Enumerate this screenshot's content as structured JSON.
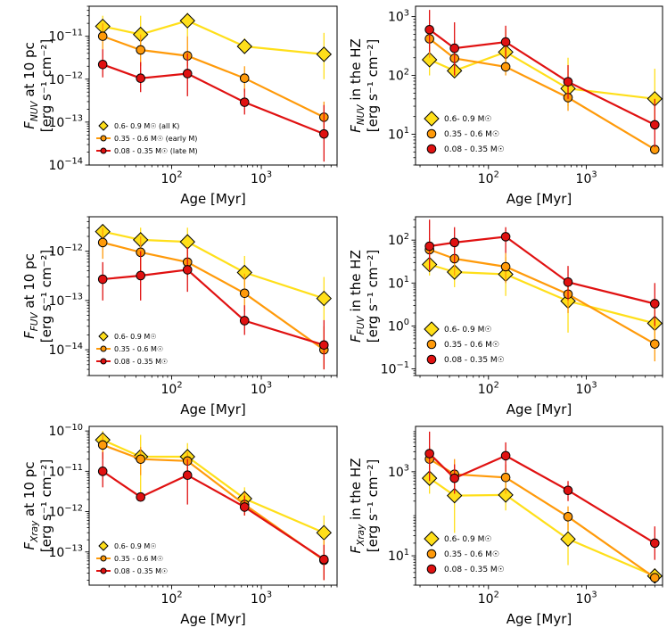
{
  "chart_data": [
    {
      "type": "line",
      "id": "nuv-10pc",
      "xlabel": "Age [Myr]",
      "ylabel_line1": "F_NUV at 10 pc",
      "ylabel_line2": "[erg s⁻¹ cm⁻²]",
      "xscale": "log",
      "yscale": "log",
      "xlim": [
        12,
        7000
      ],
      "ylim": [
        1e-14,
        5e-11
      ],
      "yticks": [
        {
          "v": 1e-14,
          "mant": "10",
          "exp": "−14"
        },
        {
          "v": 1e-13,
          "mant": "10",
          "exp": "−13"
        },
        {
          "v": 1e-12,
          "mant": "10",
          "exp": "−12"
        },
        {
          "v": 1e-11,
          "mant": "10",
          "exp": "−11"
        }
      ],
      "xticks": [
        {
          "v": 100,
          "mant": "10",
          "exp": "2"
        },
        {
          "v": 1000,
          "mant": "10",
          "exp": "3"
        }
      ],
      "legend_loc": "lower-left",
      "series": [
        {
          "name": "0.6- 0.9 M☉ (all K)",
          "color": "#ffdf1a",
          "marker": "diamond",
          "points": [
            {
              "x": 17,
              "y": 1.7e-11,
              "lo": 1e-11,
              "hi": 3e-11
            },
            {
              "x": 45,
              "y": 1.1e-11,
              "lo": 5e-12,
              "hi": 3e-11
            },
            {
              "x": 150,
              "y": 2.3e-11,
              "lo": 1e-11,
              "hi": 3.5e-11
            },
            {
              "x": 650,
              "y": 5.8e-12,
              "lo": 4e-12,
              "hi": 9e-12
            },
            {
              "x": 5000,
              "y": 3.8e-12,
              "lo": 1e-12,
              "hi": 1.2e-11
            }
          ]
        },
        {
          "name": "0.35 - 0.6 M☉ (early M)",
          "color": "#ff9a0a",
          "marker": "circle",
          "points": [
            {
              "x": 17,
              "y": 1e-11,
              "lo": 5e-12,
              "hi": 2e-11
            },
            {
              "x": 45,
              "y": 4.8e-12,
              "lo": 2e-12,
              "hi": 1.1e-11
            },
            {
              "x": 150,
              "y": 3.5e-12,
              "lo": 2e-12,
              "hi": 1e-11
            },
            {
              "x": 650,
              "y": 1.05e-12,
              "lo": 5e-13,
              "hi": 2e-12
            },
            {
              "x": 5000,
              "y": 1.3e-13,
              "lo": 4e-14,
              "hi": 3e-13
            }
          ]
        },
        {
          "name": "0.08 - 0.35 M☉ (late M)",
          "color": "#e01111",
          "marker": "circle",
          "points": [
            {
              "x": 17,
              "y": 2.2e-12,
              "lo": 1.1e-12,
              "hi": 5e-12
            },
            {
              "x": 45,
              "y": 1.05e-12,
              "lo": 5e-13,
              "hi": 2.5e-12
            },
            {
              "x": 150,
              "y": 1.35e-12,
              "lo": 4e-13,
              "hi": 4e-12
            },
            {
              "x": 650,
              "y": 2.9e-13,
              "lo": 1.5e-13,
              "hi": 6e-13
            },
            {
              "x": 5000,
              "y": 5.3e-14,
              "lo": 1.2e-14,
              "hi": 2.5e-13
            }
          ]
        }
      ]
    },
    {
      "type": "line",
      "id": "nuv-hz",
      "xlabel": "Age [Myr]",
      "ylabel_line1": "F_NUV in the HZ",
      "ylabel_line2": "[erg s⁻¹ cm⁻²]",
      "xscale": "log",
      "yscale": "log",
      "xlim": [
        18,
        6000
      ],
      "ylim": [
        3,
        1500
      ],
      "yticks": [
        {
          "v": 10,
          "mant": "10",
          "exp": "1"
        },
        {
          "v": 100,
          "mant": "10",
          "exp": "2"
        },
        {
          "v": 1000,
          "mant": "10",
          "exp": "3"
        }
      ],
      "xticks": [
        {
          "v": 100,
          "mant": "10",
          "exp": "2"
        },
        {
          "v": 1000,
          "mant": "10",
          "exp": "3"
        }
      ],
      "legend_loc": "lower-left",
      "series": [
        {
          "name": "0.6- 0.9 M☉",
          "color": "#ffdf1a",
          "marker": "diamond",
          "points": [
            {
              "x": 25,
              "y": 185,
              "lo": 100,
              "hi": 450
            },
            {
              "x": 45,
              "y": 120,
              "lo": 90,
              "hi": 150
            },
            {
              "x": 150,
              "y": 250,
              "lo": 120,
              "hi": 600
            },
            {
              "x": 650,
              "y": 60,
              "lo": 30,
              "hi": 200
            },
            {
              "x": 5000,
              "y": 40,
              "lo": 15,
              "hi": 130
            }
          ]
        },
        {
          "name": "0.35 - 0.6 M☉",
          "color": "#ff9a0a",
          "marker": "circle",
          "points": [
            {
              "x": 25,
              "y": 420,
              "lo": 200,
              "hi": 700
            },
            {
              "x": 45,
              "y": 195,
              "lo": 100,
              "hi": 400
            },
            {
              "x": 150,
              "y": 140,
              "lo": 100,
              "hi": 300
            },
            {
              "x": 650,
              "y": 42,
              "lo": 25,
              "hi": 80
            },
            {
              "x": 5000,
              "y": 5.5,
              "lo": 5,
              "hi": 6
            }
          ]
        },
        {
          "name": "0.08 - 0.35 M☉",
          "color": "#e01111",
          "marker": "circle",
          "points": [
            {
              "x": 25,
              "y": 600,
              "lo": 250,
              "hi": 1300
            },
            {
              "x": 45,
              "y": 290,
              "lo": 100,
              "hi": 800
            },
            {
              "x": 150,
              "y": 370,
              "lo": 200,
              "hi": 700
            },
            {
              "x": 650,
              "y": 78,
              "lo": 40,
              "hi": 150
            },
            {
              "x": 5000,
              "y": 14.5,
              "lo": 6,
              "hi": 40
            }
          ]
        }
      ]
    },
    {
      "type": "line",
      "id": "fuv-10pc",
      "xlabel": "Age [Myr]",
      "ylabel_line1": "F_FUV at 10 pc",
      "ylabel_line2": "[erg s⁻¹ cm⁻²]",
      "xscale": "log",
      "yscale": "log",
      "xlim": [
        12,
        7000
      ],
      "ylim": [
        3e-15,
        5e-12
      ],
      "yticks": [
        {
          "v": 1e-14,
          "mant": "10",
          "exp": "−14"
        },
        {
          "v": 1e-13,
          "mant": "10",
          "exp": "−13"
        },
        {
          "v": 1e-12,
          "mant": "10",
          "exp": "−12"
        }
      ],
      "xticks": [
        {
          "v": 100,
          "mant": "10",
          "exp": "2"
        },
        {
          "v": 1000,
          "mant": "10",
          "exp": "3"
        }
      ],
      "legend_loc": "lower-left",
      "series": [
        {
          "name": "0.6- 0.9 M☉",
          "color": "#ffdf1a",
          "marker": "diamond",
          "points": [
            {
              "x": 17,
              "y": 2.5e-12,
              "lo": 1.5e-12,
              "hi": 3.5e-12
            },
            {
              "x": 45,
              "y": 1.7e-12,
              "lo": 8e-13,
              "hi": 3e-12
            },
            {
              "x": 150,
              "y": 1.55e-12,
              "lo": 7e-13,
              "hi": 3e-12
            },
            {
              "x": 650,
              "y": 3.7e-13,
              "lo": 2e-13,
              "hi": 8e-13
            },
            {
              "x": 5000,
              "y": 1.1e-13,
              "lo": 4e-14,
              "hi": 3e-13
            }
          ]
        },
        {
          "name": "0.35 - 0.6 M☉",
          "color": "#ff9a0a",
          "marker": "circle",
          "points": [
            {
              "x": 17,
              "y": 1.5e-12,
              "lo": 7e-13,
              "hi": 3e-12
            },
            {
              "x": 45,
              "y": 9.5e-13,
              "lo": 4e-13,
              "hi": 2e-12
            },
            {
              "x": 150,
              "y": 6e-13,
              "lo": 3e-13,
              "hi": 1.2e-12
            },
            {
              "x": 650,
              "y": 1.4e-13,
              "lo": 6e-14,
              "hi": 3.5e-13
            },
            {
              "x": 5000,
              "y": 1e-14,
              "lo": 4e-15,
              "hi": 3e-14
            }
          ]
        },
        {
          "name": "0.08 - 0.35 M☉",
          "color": "#e01111",
          "marker": "circle",
          "points": [
            {
              "x": 17,
              "y": 2.7e-13,
              "lo": 1e-13,
              "hi": 6e-13
            },
            {
              "x": 45,
              "y": 3.2e-13,
              "lo": 1e-13,
              "hi": 1e-12
            },
            {
              "x": 150,
              "y": 4.2e-13,
              "lo": 1.5e-13,
              "hi": 1.2e-12
            },
            {
              "x": 650,
              "y": 3.9e-14,
              "lo": 2e-14,
              "hi": 8e-14
            },
            {
              "x": 5000,
              "y": 1.25e-14,
              "lo": 4e-15,
              "hi": 4e-14
            }
          ]
        }
      ]
    },
    {
      "type": "line",
      "id": "fuv-hz",
      "xlabel": "Age [Myr]",
      "ylabel_line1": "F_FUV in the HZ",
      "ylabel_line2": "[erg s⁻¹ cm⁻²]",
      "xscale": "log",
      "yscale": "log",
      "xlim": [
        18,
        6000
      ],
      "ylim": [
        0.07,
        350
      ],
      "yticks": [
        {
          "v": 0.1,
          "mant": "10",
          "exp": "−1"
        },
        {
          "v": 1,
          "mant": "10",
          "exp": "0"
        },
        {
          "v": 10,
          "mant": "10",
          "exp": "1"
        },
        {
          "v": 100,
          "mant": "10",
          "exp": "2"
        }
      ],
      "xticks": [
        {
          "v": 100,
          "mant": "10",
          "exp": "2"
        },
        {
          "v": 1000,
          "mant": "10",
          "exp": "3"
        }
      ],
      "legend_loc": "lower-left",
      "series": [
        {
          "name": "0.6- 0.9 M☉",
          "color": "#ffdf1a",
          "marker": "diamond",
          "points": [
            {
              "x": 25,
              "y": 27,
              "lo": 15,
              "hi": 45
            },
            {
              "x": 45,
              "y": 18,
              "lo": 8,
              "hi": 35
            },
            {
              "x": 150,
              "y": 16,
              "lo": 5,
              "hi": 40
            },
            {
              "x": 650,
              "y": 3.8,
              "lo": 0.7,
              "hi": 8
            },
            {
              "x": 5000,
              "y": 1.15,
              "lo": 0.4,
              "hi": 3
            }
          ]
        },
        {
          "name": "0.35 - 0.6 M☉",
          "color": "#ff9a0a",
          "marker": "circle",
          "points": [
            {
              "x": 25,
              "y": 60,
              "lo": 30,
              "hi": 110
            },
            {
              "x": 45,
              "y": 37,
              "lo": 15,
              "hi": 80
            },
            {
              "x": 150,
              "y": 24,
              "lo": 10,
              "hi": 50
            },
            {
              "x": 650,
              "y": 5.5,
              "lo": 2,
              "hi": 12
            },
            {
              "x": 5000,
              "y": 0.38,
              "lo": 0.15,
              "hi": 1
            }
          ]
        },
        {
          "name": "0.08 - 0.35 M☉",
          "color": "#e01111",
          "marker": "circle",
          "points": [
            {
              "x": 25,
              "y": 72,
              "lo": 20,
              "hi": 300
            },
            {
              "x": 45,
              "y": 88,
              "lo": 30,
              "hi": 200
            },
            {
              "x": 150,
              "y": 120,
              "lo": 50,
              "hi": 200
            },
            {
              "x": 650,
              "y": 10.5,
              "lo": 4,
              "hi": 25
            },
            {
              "x": 5000,
              "y": 3.3,
              "lo": 1,
              "hi": 10
            }
          ]
        }
      ]
    },
    {
      "type": "line",
      "id": "xray-10pc",
      "xlabel": "Age [Myr]",
      "ylabel_line1": "F_Xray at 10 pc",
      "ylabel_line2": "[erg s⁻¹ cm⁻²]",
      "xscale": "log",
      "yscale": "log",
      "xlim": [
        12,
        7000
      ],
      "ylim": [
        1.5e-14,
        1.3e-10
      ],
      "yticks": [
        {
          "v": 1e-13,
          "mant": "10",
          "exp": "−13"
        },
        {
          "v": 1e-12,
          "mant": "10",
          "exp": "−12"
        },
        {
          "v": 1e-11,
          "mant": "10",
          "exp": "−11"
        },
        {
          "v": 1e-10,
          "mant": "10",
          "exp": "−10"
        }
      ],
      "xticks": [
        {
          "v": 100,
          "mant": "10",
          "exp": "2"
        },
        {
          "v": 1000,
          "mant": "10",
          "exp": "3"
        }
      ],
      "legend_loc": "lower-left",
      "series": [
        {
          "name": "0.6- 0.9 M☉",
          "color": "#ffdf1a",
          "marker": "diamond",
          "points": [
            {
              "x": 17,
              "y": 6e-11,
              "lo": 2e-11,
              "hi": 1e-10
            },
            {
              "x": 45,
              "y": 2.3e-11,
              "lo": 3e-12,
              "hi": 8e-11
            },
            {
              "x": 150,
              "y": 2.3e-11,
              "lo": 1e-11,
              "hi": 5e-11
            },
            {
              "x": 650,
              "y": 2.1e-12,
              "lo": 1e-12,
              "hi": 4e-12
            },
            {
              "x": 5000,
              "y": 3e-13,
              "lo": 8e-14,
              "hi": 8e-13
            }
          ]
        },
        {
          "name": "0.35 - 0.6 M☉",
          "color": "#ff9a0a",
          "marker": "circle",
          "points": [
            {
              "x": 17,
              "y": 4.5e-11,
              "lo": 2e-11,
              "hi": 8e-11
            },
            {
              "x": 45,
              "y": 2e-11,
              "lo": 8e-12,
              "hi": 4e-11
            },
            {
              "x": 150,
              "y": 1.8e-11,
              "lo": 6e-12,
              "hi": 3e-11
            },
            {
              "x": 650,
              "y": 1.5e-12,
              "lo": 8e-13,
              "hi": 3e-12
            },
            {
              "x": 5000,
              "y": 6.2e-14,
              "lo": 2e-14,
              "hi": 2e-13
            }
          ]
        },
        {
          "name": "0.08 - 0.35 M☉",
          "color": "#e01111",
          "marker": "circle",
          "points": [
            {
              "x": 17,
              "y": 1e-11,
              "lo": 4e-12,
              "hi": 3e-11
            },
            {
              "x": 45,
              "y": 2.3e-12,
              "lo": 2.2e-12,
              "hi": 2.4e-12
            },
            {
              "x": 150,
              "y": 8e-12,
              "lo": 1.5e-12,
              "hi": 2e-11
            },
            {
              "x": 650,
              "y": 1.3e-12,
              "lo": 8e-13,
              "hi": 2.5e-12
            },
            {
              "x": 5000,
              "y": 6.5e-14,
              "lo": 2e-14,
              "hi": 1.5e-13
            }
          ]
        }
      ]
    },
    {
      "type": "line",
      "id": "xray-hz",
      "xlabel": "Age [Myr]",
      "ylabel_line1": "F_Xray in the HZ",
      "ylabel_line2": "[erg s⁻¹ cm⁻²]",
      "xscale": "log",
      "yscale": "log",
      "xlim": [
        18,
        6000
      ],
      "ylim": [
        2,
        12000
      ],
      "yticks": [
        {
          "v": 10,
          "mant": "10",
          "exp": "1"
        },
        {
          "v": 1000,
          "mant": "10",
          "exp": "3"
        }
      ],
      "xticks": [
        {
          "v": 100,
          "mant": "10",
          "exp": "2"
        },
        {
          "v": 1000,
          "mant": "10",
          "exp": "3"
        }
      ],
      "legend_loc": "lower-left",
      "series": [
        {
          "name": "0.6- 0.9 M☉",
          "color": "#ffdf1a",
          "marker": "diamond",
          "points": [
            {
              "x": 25,
              "y": 700,
              "lo": 300,
              "hi": 2500
            },
            {
              "x": 45,
              "y": 270,
              "lo": 35,
              "hi": 900
            },
            {
              "x": 150,
              "y": 280,
              "lo": 120,
              "hi": 600
            },
            {
              "x": 650,
              "y": 25,
              "lo": 6,
              "hi": 60
            },
            {
              "x": 5000,
              "y": 3.3,
              "lo": 2.5,
              "hi": 5
            }
          ]
        },
        {
          "name": "0.35 - 0.6 M☉",
          "color": "#ff9a0a",
          "marker": "circle",
          "points": [
            {
              "x": 25,
              "y": 2000,
              "lo": 800,
              "hi": 4000
            },
            {
              "x": 45,
              "y": 870,
              "lo": 400,
              "hi": 2000
            },
            {
              "x": 150,
              "y": 730,
              "lo": 300,
              "hi": 1500
            },
            {
              "x": 650,
              "y": 85,
              "lo": 40,
              "hi": 150
            },
            {
              "x": 5000,
              "y": 3,
              "lo": 2.5,
              "hi": 4
            }
          ]
        },
        {
          "name": "0.08 - 0.35 M☉",
          "color": "#e01111",
          "marker": "circle",
          "points": [
            {
              "x": 25,
              "y": 2700,
              "lo": 600,
              "hi": 9000
            },
            {
              "x": 45,
              "y": 700,
              "lo": 300,
              "hi": 1500
            },
            {
              "x": 150,
              "y": 2400,
              "lo": 1000,
              "hi": 5000
            },
            {
              "x": 650,
              "y": 360,
              "lo": 200,
              "hi": 600
            },
            {
              "x": 5000,
              "y": 20,
              "lo": 8,
              "hi": 50
            }
          ]
        }
      ]
    }
  ]
}
